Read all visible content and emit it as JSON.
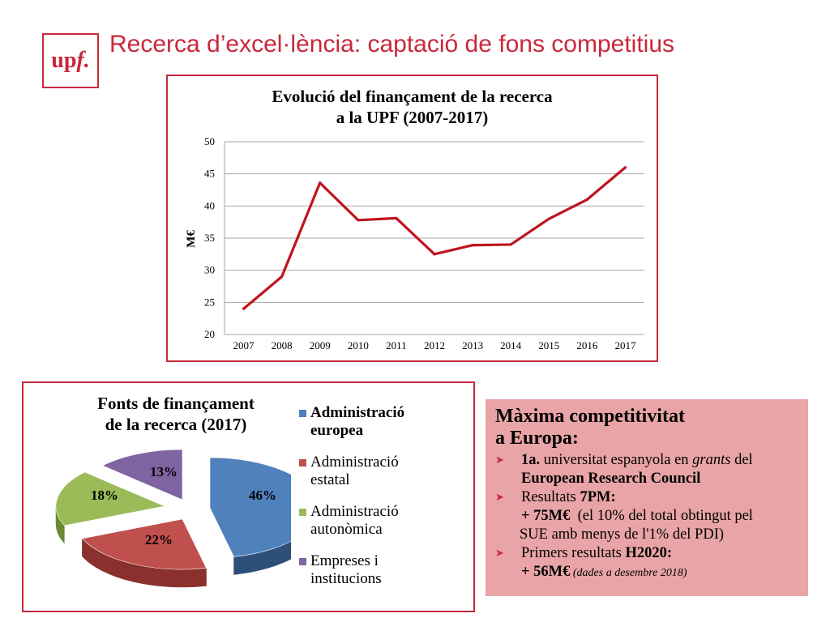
{
  "header": {
    "logo_text_a": "up",
    "logo_text_b": "f.",
    "title": "Recerca d’excel·lència: captació de fons competitius"
  },
  "chart_data": [
    {
      "type": "line",
      "title_line1": "Evolució del finançament de la recerca",
      "title_line2": "a la UPF (2007-2017)",
      "ylabel": "M€",
      "xlabel": "",
      "ylim": [
        20,
        50
      ],
      "yticks": [
        "20",
        "25",
        "30",
        "35",
        "40",
        "45",
        "50"
      ],
      "x": [
        "2007",
        "2008",
        "2009",
        "2010",
        "2011",
        "2012",
        "2013",
        "2014",
        "2015",
        "2016",
        "2017"
      ],
      "values": [
        24,
        29,
        43.6,
        37.8,
        38.1,
        32.5,
        33.9,
        34,
        38,
        41,
        46
      ],
      "grid": true,
      "line_color": "#c0141e"
    },
    {
      "type": "pie",
      "title_line1": "Fonts de finançament",
      "title_line2": "de la recerca (2017)",
      "labels": [
        "46%",
        "22%",
        "18%",
        "13%"
      ],
      "values": [
        46,
        22,
        18,
        13
      ],
      "legend": [
        {
          "line1": "Administració",
          "line2": "europea",
          "color": "#4f81bd"
        },
        {
          "line1": "Administració",
          "line2": "estatal",
          "color": "#c0504d"
        },
        {
          "line1": "Administració",
          "line2": "autonòmica",
          "color": "#9bbb59"
        },
        {
          "line1": "Empreses i",
          "line2": "institucions",
          "color": "#8064a2"
        }
      ],
      "legend_placement": "right"
    }
  ],
  "info_box": {
    "heading_line1": "Màxima competitivitat",
    "heading_line2": "a Europa:",
    "b1_bold1": "1a.",
    "b1_text1": " universitat espanyola en ",
    "b1_italic": "grants",
    "b1_text2": " del",
    "b1_bold2": "European Research Council",
    "b2_text1": "Resultats ",
    "b2_bold": "7PM:",
    "b2_line2_bold": "+ 75M€",
    "b2_line2_text": "  (el 10% del total obtingut pel",
    "b2_line3": "SUE amb menys de l'1% del PDI)",
    "b3_text1": "Primers resultats ",
    "b3_bold": "H2020:",
    "b3_line2_bold": "+ 56M€",
    "b3_line2_italic": " (dades a desembre 2018)"
  }
}
